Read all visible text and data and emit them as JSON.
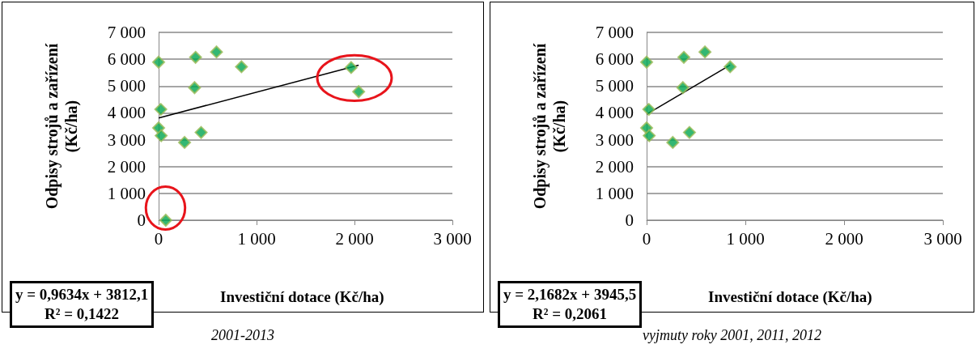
{
  "chart_data": [
    {
      "type": "scatter",
      "title": "2001-2013",
      "xlabel": "Investiční dotace (Kč/ha)",
      "ylabel": "Odpisy strojů a zařízení\n(Kč/ha)",
      "annotations": [
        "y = 0,9634x + 3812,1",
        "R² = 0,1422"
      ],
      "xlim": [
        0,
        3000
      ],
      "xticks": [
        0,
        {
          "value": 1000,
          "label": "1 000"
        },
        {
          "value": 2000,
          "label": "2 000"
        },
        {
          "value": 3000,
          "label": "3 000"
        }
      ],
      "ylim": [
        0,
        7000
      ],
      "yticks": [
        0,
        {
          "value": 1000,
          "label": "1 000"
        },
        {
          "value": 2000,
          "label": "2 000"
        },
        {
          "value": 3000,
          "label": "3 000"
        },
        {
          "value": 4000,
          "label": "4 000"
        },
        {
          "value": 5000,
          "label": "5 000"
        },
        {
          "value": 6000,
          "label": "6 000"
        },
        {
          "value": 7000,
          "label": "7 000"
        }
      ],
      "grid": "y",
      "marker": "diamond",
      "series": [
        {
          "color": "#00a550",
          "x": [
            0,
            377,
            591,
            846,
            367,
            22,
            0,
            26,
            265,
            434,
            1966,
            2043,
            73
          ],
          "values": [
            5890,
            6070,
            6270,
            5720,
            4940,
            4130,
            3440,
            3150,
            2900,
            3270,
            5690,
            4790,
            0
          ]
        },
        {
          "type": "line",
          "marker": "none",
          "color": "#000000",
          "x": [
            0,
            2043
          ],
          "values": [
            3810,
            5780
          ]
        }
      ]
    },
    {
      "type": "scatter",
      "title": "vyjmuty roky 2001, 2011, 2012",
      "xlabel": "Investiční dotace (Kč/ha)",
      "ylabel": "Odpisy strojů a zařízení\n(Kč/ha)",
      "annotations": [
        "y = 2,1682x + 3945,5",
        "R² = 0,2061"
      ],
      "xlim": [
        0,
        3000
      ],
      "xticks": [
        0,
        {
          "value": 1000,
          "label": "1 000"
        },
        {
          "value": 2000,
          "label": "2 000"
        },
        {
          "value": 3000,
          "label": "3 000"
        }
      ],
      "ylim": [
        0,
        7000
      ],
      "yticks": [
        0,
        {
          "value": 1000,
          "label": "1 000"
        },
        {
          "value": 2000,
          "label": "2 000"
        },
        {
          "value": 3000,
          "label": "3 000"
        },
        {
          "value": 4000,
          "label": "4 000"
        },
        {
          "value": 5000,
          "label": "5 000"
        },
        {
          "value": 6000,
          "label": "6 000"
        },
        {
          "value": 7000,
          "label": "7 000"
        }
      ],
      "grid": "y",
      "marker": "diamond",
      "series": [
        {
          "color": "#00a550",
          "x": [
            0,
            377,
            591,
            846,
            367,
            22,
            0,
            26,
            265,
            434
          ],
          "values": [
            5890,
            6070,
            6270,
            5720,
            4940,
            4130,
            3440,
            3150,
            2900,
            3270
          ]
        },
        {
          "type": "line",
          "marker": "none",
          "color": "#000000",
          "x": [
            0,
            846
          ],
          "values": [
            3950,
            5780
          ]
        }
      ]
    }
  ]
}
